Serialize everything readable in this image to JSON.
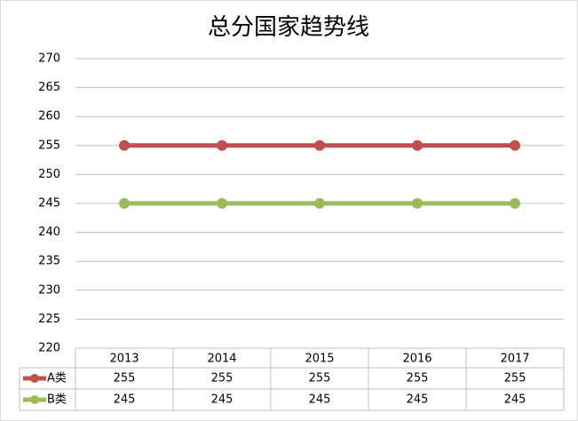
{
  "chart_data": {
    "type": "line",
    "title": "总分国家趋势线",
    "categories": [
      "2013",
      "2014",
      "2015",
      "2016",
      "2017"
    ],
    "series": [
      {
        "name": "A类",
        "color": "#c0504d",
        "values": [
          255,
          255,
          255,
          255,
          255
        ]
      },
      {
        "name": "B类",
        "color": "#9bbb59",
        "values": [
          245,
          245,
          245,
          245,
          245
        ]
      }
    ],
    "ylim": [
      220,
      270
    ],
    "yticks": [
      220,
      225,
      230,
      235,
      240,
      245,
      250,
      255,
      260,
      265,
      270
    ],
    "grid": true
  }
}
